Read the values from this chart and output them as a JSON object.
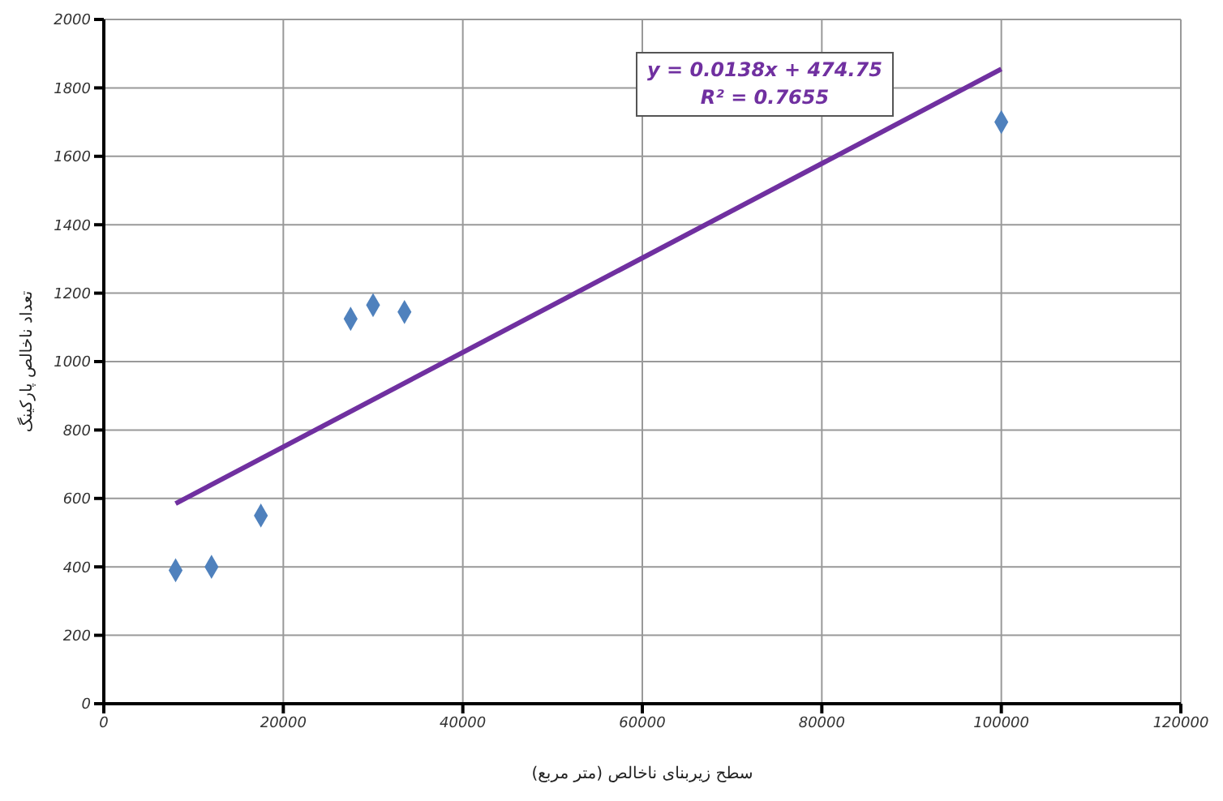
{
  "chart_data": {
    "type": "scatter",
    "xlabel": "سطح زیربنای ناخالص (متر مربع)",
    "ylabel": "تعداد ناخالص پارکینگ",
    "annotations": [
      "y = 0.0138x + 474.75",
      "R² = 0.7655"
    ],
    "xlim": [
      0,
      120000
    ],
    "xticks": [
      0,
      20000,
      40000,
      60000,
      80000,
      100000,
      120000
    ],
    "ylim": [
      0,
      2000
    ],
    "yticks": [
      0,
      200,
      400,
      600,
      800,
      1000,
      1200,
      1400,
      1600,
      1800,
      2000
    ],
    "grid": true,
    "series": [
      {
        "marker": "diamond",
        "color": "#4f81bd",
        "x": [
          8000,
          12000,
          17500,
          27500,
          30000,
          33500,
          100000
        ],
        "values": [
          390,
          400,
          550,
          1125,
          1165,
          1145,
          1700
        ]
      },
      {
        "type": "line",
        "marker": "none",
        "color": "#7030a0",
        "x": [
          8000,
          100000
        ],
        "values": [
          585,
          1855
        ]
      }
    ]
  }
}
